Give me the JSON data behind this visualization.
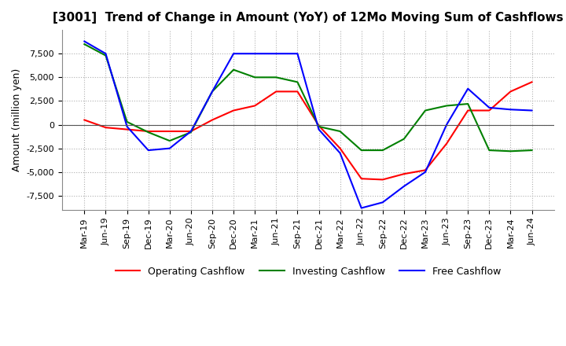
{
  "title": "[3001]  Trend of Change in Amount (YoY) of 12Mo Moving Sum of Cashflows",
  "ylabel": "Amount (million yen)",
  "ylim": [
    -9000,
    10000
  ],
  "yticks": [
    -7500,
    -5000,
    -2500,
    0,
    2500,
    5000,
    7500
  ],
  "x_labels": [
    "Mar-19",
    "Jun-19",
    "Sep-19",
    "Dec-19",
    "Mar-20",
    "Jun-20",
    "Sep-20",
    "Dec-20",
    "Mar-21",
    "Jun-21",
    "Sep-21",
    "Dec-21",
    "Mar-22",
    "Jun-22",
    "Sep-22",
    "Dec-22",
    "Mar-23",
    "Jun-23",
    "Sep-23",
    "Dec-23",
    "Mar-24",
    "Jun-24"
  ],
  "operating": [
    500,
    -300,
    -500,
    -700,
    -700,
    -700,
    500,
    1500,
    2000,
    3500,
    3500,
    -100,
    -2500,
    -5700,
    -5800,
    -5200,
    -4800,
    -2000,
    1500,
    1500,
    3500,
    4500
  ],
  "investing": [
    8500,
    7300,
    300,
    -800,
    -1700,
    -800,
    3500,
    5800,
    5000,
    5000,
    4500,
    -200,
    -700,
    -2700,
    -2700,
    -1500,
    1500,
    2000,
    2200,
    -2700,
    -2800,
    -2700
  ],
  "free": [
    8800,
    7500,
    -200,
    -2700,
    -2500,
    -700,
    3500,
    7500,
    7500,
    7500,
    7500,
    -500,
    -3000,
    -8800,
    -8200,
    -6500,
    -5000,
    0,
    3800,
    1800,
    1600,
    1500
  ],
  "operating_color": "#ff0000",
  "investing_color": "#008000",
  "free_color": "#0000ff",
  "background_color": "#ffffff",
  "grid_color": "#b0b0b0",
  "title_fontsize": 11,
  "axis_fontsize": 9,
  "tick_fontsize": 8,
  "legend_fontsize": 9
}
